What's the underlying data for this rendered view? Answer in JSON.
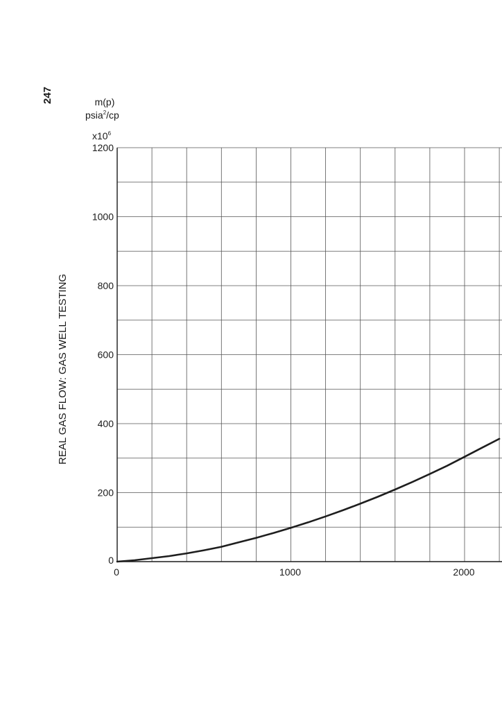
{
  "page": {
    "page_number": "247",
    "running_header": "REAL GAS FLOW: GAS WELL TESTING"
  },
  "chart_data": {
    "type": "line",
    "ylabel_line1": "m(p)",
    "ylabel_line2_base": "psia",
    "ylabel_line2_sup": "2",
    "ylabel_line2_rest": "/cp",
    "y_multiplier_base": "x10",
    "y_multiplier_exp": "6",
    "xlim": [
      0,
      2200
    ],
    "ylim": [
      0,
      1200
    ],
    "x_ticks": [
      0,
      1000,
      2000
    ],
    "y_ticks": [
      0,
      200,
      400,
      600,
      800,
      1000,
      1200
    ],
    "x_minor_step": 200,
    "y_minor_step": 100,
    "grid": true,
    "colors": {
      "grid": "#555555",
      "curve": "#1e1e1e",
      "axis": "#1a1a1a"
    },
    "series": [
      {
        "x": [
          0,
          100,
          200,
          300,
          400,
          500,
          600,
          700,
          800,
          900,
          1000,
          1100,
          1200,
          1300,
          1400,
          1500,
          1600,
          1700,
          1800,
          1900,
          2000,
          2100,
          2200
        ],
        "y": [
          0,
          4,
          10,
          16,
          24,
          33,
          43,
          56,
          69,
          83,
          98,
          114,
          131,
          149,
          168,
          188,
          209,
          231,
          254,
          278,
          304,
          330,
          356
        ]
      }
    ]
  }
}
